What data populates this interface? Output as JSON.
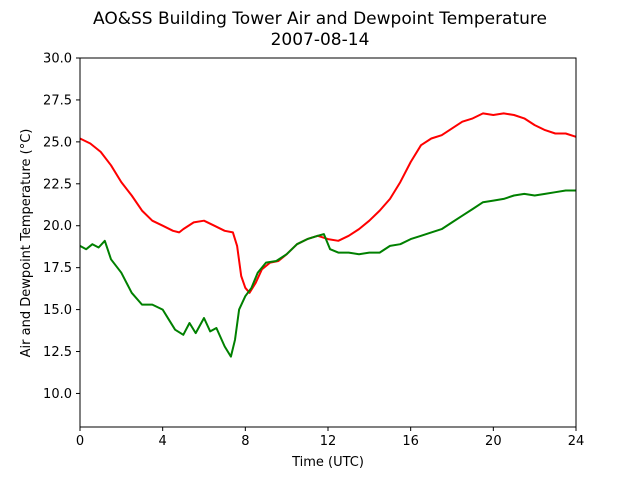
{
  "chart_data": {
    "type": "line",
    "title": "AO&SS Building Tower Air and Dewpoint Temperature",
    "subtitle": "2007-08-14",
    "xlabel": "Time (UTC)",
    "ylabel": "Air and Dewpoint Temperature (°C)",
    "xlim": [
      0,
      24
    ],
    "ylim": [
      8.0,
      30.0
    ],
    "xticks": [
      0,
      4,
      8,
      12,
      16,
      20,
      24
    ],
    "xtick_labels": [
      "0",
      "4",
      "8",
      "12",
      "16",
      "20",
      "24"
    ],
    "yticks": [
      10.0,
      12.5,
      15.0,
      17.5,
      20.0,
      22.5,
      25.0,
      27.5,
      30.0
    ],
    "ytick_labels": [
      "10.0",
      "12.5",
      "15.0",
      "17.5",
      "20.0",
      "22.5",
      "25.0",
      "27.5",
      "30.0"
    ],
    "grid": false,
    "series": [
      {
        "color": "#ff0000",
        "points": [
          [
            0.0,
            25.2
          ],
          [
            0.5,
            24.9
          ],
          [
            1.0,
            24.4
          ],
          [
            1.5,
            23.6
          ],
          [
            2.0,
            22.6
          ],
          [
            2.5,
            21.8
          ],
          [
            3.0,
            20.9
          ],
          [
            3.5,
            20.3
          ],
          [
            4.0,
            20.0
          ],
          [
            4.5,
            19.7
          ],
          [
            4.8,
            19.6
          ],
          [
            5.0,
            19.8
          ],
          [
            5.5,
            20.2
          ],
          [
            6.0,
            20.3
          ],
          [
            6.5,
            20.0
          ],
          [
            7.0,
            19.7
          ],
          [
            7.4,
            19.6
          ],
          [
            7.6,
            18.8
          ],
          [
            7.8,
            17.0
          ],
          [
            8.0,
            16.3
          ],
          [
            8.2,
            16.0
          ],
          [
            8.5,
            16.6
          ],
          [
            8.8,
            17.4
          ],
          [
            9.2,
            17.8
          ],
          [
            9.6,
            17.9
          ],
          [
            10.0,
            18.3
          ],
          [
            10.5,
            18.9
          ],
          [
            11.0,
            19.2
          ],
          [
            11.5,
            19.4
          ],
          [
            12.0,
            19.2
          ],
          [
            12.5,
            19.1
          ],
          [
            13.0,
            19.4
          ],
          [
            13.5,
            19.8
          ],
          [
            14.0,
            20.3
          ],
          [
            14.5,
            20.9
          ],
          [
            15.0,
            21.6
          ],
          [
            15.5,
            22.6
          ],
          [
            16.0,
            23.8
          ],
          [
            16.5,
            24.8
          ],
          [
            17.0,
            25.2
          ],
          [
            17.5,
            25.4
          ],
          [
            18.0,
            25.8
          ],
          [
            18.5,
            26.2
          ],
          [
            19.0,
            26.4
          ],
          [
            19.5,
            26.7
          ],
          [
            20.0,
            26.6
          ],
          [
            20.5,
            26.7
          ],
          [
            21.0,
            26.6
          ],
          [
            21.5,
            26.4
          ],
          [
            22.0,
            26.0
          ],
          [
            22.5,
            25.7
          ],
          [
            23.0,
            25.5
          ],
          [
            23.5,
            25.5
          ],
          [
            24.0,
            25.3
          ]
        ]
      },
      {
        "color": "#008000",
        "points": [
          [
            0.0,
            18.8
          ],
          [
            0.3,
            18.6
          ],
          [
            0.6,
            18.9
          ],
          [
            0.9,
            18.7
          ],
          [
            1.2,
            19.1
          ],
          [
            1.5,
            18.0
          ],
          [
            2.0,
            17.2
          ],
          [
            2.5,
            16.0
          ],
          [
            3.0,
            15.3
          ],
          [
            3.5,
            15.3
          ],
          [
            4.0,
            15.0
          ],
          [
            4.3,
            14.4
          ],
          [
            4.6,
            13.8
          ],
          [
            5.0,
            13.5
          ],
          [
            5.3,
            14.2
          ],
          [
            5.6,
            13.6
          ],
          [
            6.0,
            14.5
          ],
          [
            6.3,
            13.7
          ],
          [
            6.6,
            13.9
          ],
          [
            7.0,
            12.8
          ],
          [
            7.3,
            12.2
          ],
          [
            7.5,
            13.2
          ],
          [
            7.7,
            15.0
          ],
          [
            8.0,
            15.8
          ],
          [
            8.3,
            16.3
          ],
          [
            8.6,
            17.2
          ],
          [
            9.0,
            17.8
          ],
          [
            9.5,
            17.9
          ],
          [
            10.0,
            18.3
          ],
          [
            10.5,
            18.9
          ],
          [
            11.0,
            19.2
          ],
          [
            11.5,
            19.4
          ],
          [
            11.8,
            19.5
          ],
          [
            12.1,
            18.6
          ],
          [
            12.5,
            18.4
          ],
          [
            13.0,
            18.4
          ],
          [
            13.5,
            18.3
          ],
          [
            14.0,
            18.4
          ],
          [
            14.5,
            18.4
          ],
          [
            15.0,
            18.8
          ],
          [
            15.5,
            18.9
          ],
          [
            16.0,
            19.2
          ],
          [
            16.5,
            19.4
          ],
          [
            17.0,
            19.6
          ],
          [
            17.5,
            19.8
          ],
          [
            18.0,
            20.2
          ],
          [
            18.5,
            20.6
          ],
          [
            19.0,
            21.0
          ],
          [
            19.5,
            21.4
          ],
          [
            20.0,
            21.5
          ],
          [
            20.5,
            21.6
          ],
          [
            21.0,
            21.8
          ],
          [
            21.5,
            21.9
          ],
          [
            22.0,
            21.8
          ],
          [
            22.5,
            21.9
          ],
          [
            23.0,
            22.0
          ],
          [
            23.5,
            22.1
          ],
          [
            24.0,
            22.1
          ]
        ]
      }
    ]
  }
}
